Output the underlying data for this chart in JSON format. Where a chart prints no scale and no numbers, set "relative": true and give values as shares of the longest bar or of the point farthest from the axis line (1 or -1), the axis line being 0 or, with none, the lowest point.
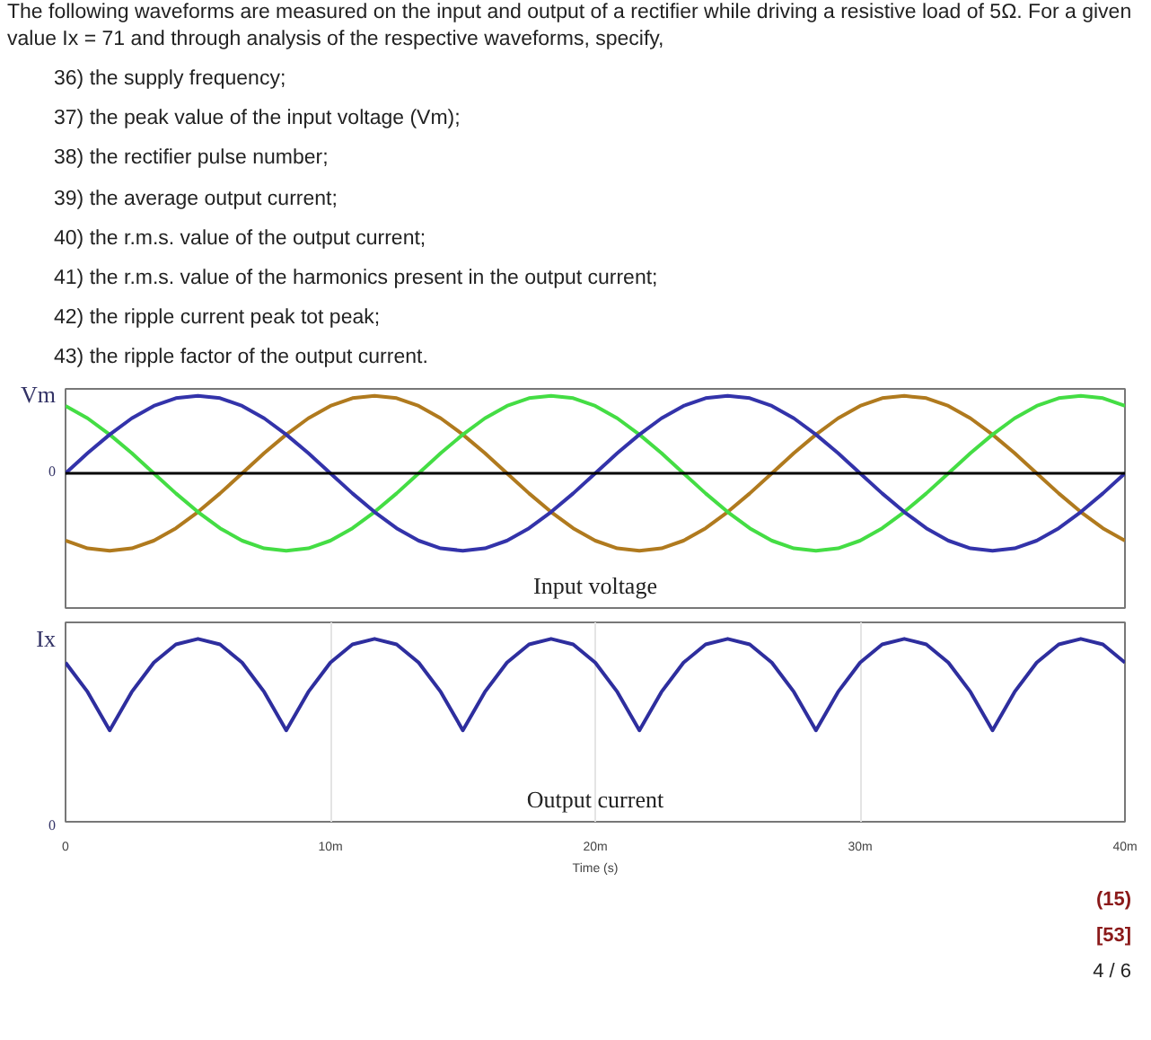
{
  "chart_data": [
    {
      "type": "line",
      "title": "Input voltage",
      "relative": true,
      "annotations": [
        "Vm",
        "0",
        "The following waveforms are measured on the input and output of a rectifier while driving a resistive load of 5Ω. For a given value Ix = 71 and through analysis of the respective waveforms, specify,",
        "36) the supply frequency;",
        "37) the peak value of the input voltage (Vm);",
        "38) the rectifier pulse number;",
        "39) the average output current;",
        "40) the r.m.s. value of the output current;",
        "41) the r.m.s. value of the harmonics present in the output current;",
        "42) the ripple current peak tot peak;",
        "43) the ripple factor of the output current."
      ],
      "x": [
        0,
        0.833,
        1.667,
        2.5,
        3.333,
        4.167,
        5,
        5.833,
        6.667,
        7.5,
        8.333,
        9.167,
        10,
        10.833,
        11.667,
        12.5,
        13.333,
        14.167,
        15,
        15.833,
        16.667,
        17.5,
        18.333,
        19.167,
        20,
        20.833,
        21.667,
        22.5,
        23.333,
        24.167,
        25,
        25.833,
        26.667,
        27.5,
        28.333,
        29.167,
        30,
        30.833,
        31.667,
        32.5,
        33.333,
        34.167,
        35,
        35.833,
        36.667,
        37.5,
        38.333,
        39.167,
        40
      ],
      "series": [
        {
          "color": "#b07a1e",
          "values": [
            -0.87,
            -0.97,
            -1,
            -0.97,
            -0.87,
            -0.71,
            -0.5,
            -0.26,
            0,
            0.26,
            0.5,
            0.71,
            0.87,
            0.97,
            1,
            0.97,
            0.87,
            0.71,
            0.5,
            0.26,
            0,
            -0.26,
            -0.5,
            -0.71,
            -0.87,
            -0.97,
            -1,
            -0.97,
            -0.87,
            -0.71,
            -0.5,
            -0.26,
            0,
            0.26,
            0.5,
            0.71,
            0.87,
            0.97,
            1,
            0.97,
            0.87,
            0.71,
            0.5,
            0.26,
            0,
            -0.26,
            -0.5,
            -0.71,
            -0.87
          ]
        },
        {
          "color": "#44dd44",
          "values": [
            0.87,
            0.71,
            0.5,
            0.26,
            0,
            -0.26,
            -0.5,
            -0.71,
            -0.87,
            -0.97,
            -1,
            -0.97,
            -0.87,
            -0.71,
            -0.5,
            -0.26,
            0,
            0.26,
            0.5,
            0.71,
            0.87,
            0.97,
            1,
            0.97,
            0.87,
            0.71,
            0.5,
            0.26,
            0,
            -0.26,
            -0.5,
            -0.71,
            -0.87,
            -0.97,
            -1,
            -0.97,
            -0.87,
            -0.71,
            -0.5,
            -0.26,
            0,
            0.26,
            0.5,
            0.71,
            0.87,
            0.97,
            1,
            0.97,
            0.87
          ]
        },
        {
          "color": "#3333aa",
          "values": [
            0,
            0.26,
            0.5,
            0.71,
            0.87,
            0.97,
            1,
            0.97,
            0.87,
            0.71,
            0.5,
            0.26,
            0,
            -0.26,
            -0.5,
            -0.71,
            -0.87,
            -0.97,
            -1,
            -0.97,
            -0.87,
            -0.71,
            -0.5,
            -0.26,
            0,
            0.26,
            0.5,
            0.71,
            0.87,
            0.97,
            1,
            0.97,
            0.87,
            0.71,
            0.5,
            0.26,
            0,
            -0.26,
            -0.5,
            -0.71,
            -0.87,
            -0.97,
            -1,
            -0.97,
            -0.87,
            -0.71,
            -0.5,
            -0.26,
            0
          ]
        }
      ],
      "xlim": [
        0,
        40
      ],
      "ref_lines": [
        {
          "axis": "y",
          "value": 0,
          "color": "#000000"
        }
      ],
      "tick_labels": false
    },
    {
      "type": "line",
      "title": "Output current",
      "xlabel": "Time (s)",
      "relative": true,
      "annotations": [
        "Ix",
        "0",
        "(15)",
        "[53]",
        "4 / 6"
      ],
      "x": [
        0,
        0.833,
        1.667,
        2.5,
        3.333,
        4.167,
        5,
        5.833,
        6.667,
        7.5,
        8.333,
        9.167,
        10,
        10.833,
        11.667,
        12.5,
        13.333,
        14.167,
        15,
        15.833,
        16.667,
        17.5,
        18.333,
        19.167,
        20,
        20.833,
        21.667,
        22.5,
        23.333,
        24.167,
        25,
        25.833,
        26.667,
        27.5,
        28.333,
        29.167,
        30,
        30.833,
        31.667,
        32.5,
        33.333,
        34.167,
        35,
        35.833,
        36.667,
        37.5,
        38.333,
        39.167,
        40
      ],
      "series": [
        {
          "color": "#2e2e9e",
          "values": [
            0.87,
            0.71,
            0.5,
            0.71,
            0.87,
            0.97,
            1,
            0.97,
            0.87,
            0.71,
            0.5,
            0.71,
            0.87,
            0.97,
            1,
            0.97,
            0.87,
            0.71,
            0.5,
            0.71,
            0.87,
            0.97,
            1,
            0.97,
            0.87,
            0.71,
            0.5,
            0.71,
            0.87,
            0.97,
            1,
            0.97,
            0.87,
            0.71,
            0.5,
            0.71,
            0.87,
            0.97,
            1,
            0.97,
            0.87,
            0.71,
            0.5,
            0.71,
            0.87,
            0.97,
            1,
            0.97,
            0.87
          ]
        }
      ],
      "xlim": [
        0,
        40
      ],
      "xticks": [
        0,
        {
          "value": 10,
          "label": "10m"
        },
        {
          "value": 20,
          "label": "20m"
        },
        {
          "value": 30,
          "label": "30m"
        },
        {
          "value": 40,
          "label": "40m"
        }
      ],
      "grid": "x",
      "tick_labels": "x"
    }
  ]
}
